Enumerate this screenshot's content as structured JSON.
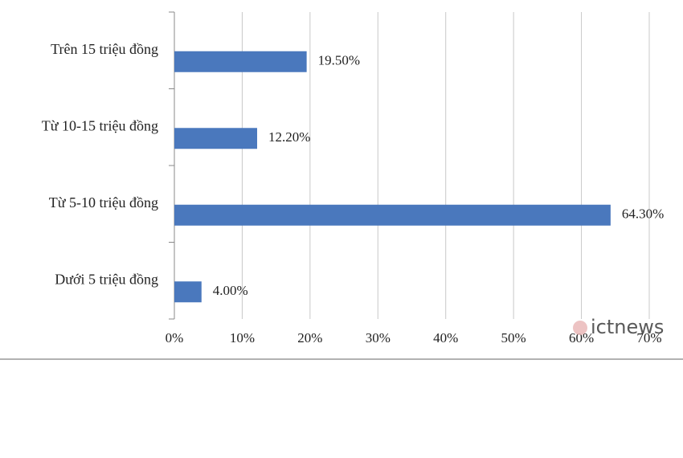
{
  "chart_data": {
    "type": "bar",
    "orientation": "horizontal",
    "categories": [
      "Trên 15 triệu đồng",
      "Từ 10-15 triệu đồng",
      "Từ 5-10 triệu đồng",
      "Dưới 5 triệu đồng"
    ],
    "values": [
      19.5,
      12.2,
      64.3,
      4.0
    ],
    "value_labels": [
      "19.50%",
      "12.20%",
      "64.30%",
      "4.00%"
    ],
    "color": "#4a78bd",
    "xlim": [
      0,
      70
    ],
    "xticks": [
      {
        "value": 0,
        "label": "0%"
      },
      {
        "value": 10,
        "label": "10%"
      },
      {
        "value": 20,
        "label": "20%"
      },
      {
        "value": 30,
        "label": "30%"
      },
      {
        "value": 40,
        "label": "40%"
      },
      {
        "value": 50,
        "label": "50%"
      },
      {
        "value": 60,
        "label": "60%"
      },
      {
        "value": 70,
        "label": "70%"
      }
    ],
    "grid": true,
    "watermark": "ictnews"
  }
}
